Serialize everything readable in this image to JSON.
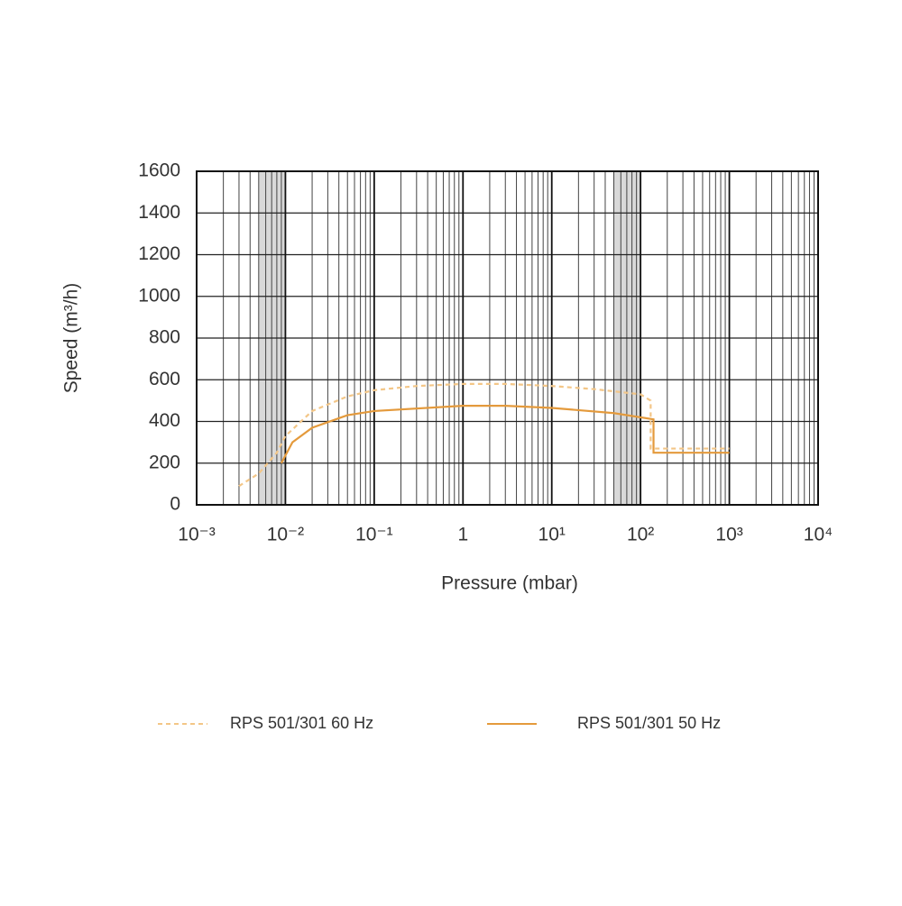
{
  "chart_data": {
    "type": "line",
    "xlabel": "Pressure (mbar)",
    "ylabel": "Speed (m³/h)",
    "xscale": "log",
    "grid": true,
    "xlim": [
      0.001,
      10000
    ],
    "xticks": [
      {
        "value": 0.001,
        "label": "10⁻³"
      },
      {
        "value": 0.01,
        "label": "10⁻²"
      },
      {
        "value": 0.1,
        "label": "10⁻¹"
      },
      1,
      {
        "value": 10,
        "label": "10¹"
      },
      {
        "value": 100,
        "label": "10²"
      },
      {
        "value": 1000,
        "label": "10³"
      },
      {
        "value": 10000,
        "label": "10⁴"
      }
    ],
    "ylim": [
      0,
      1600
    ],
    "yticks": [
      0,
      200,
      400,
      600,
      800,
      1000,
      1200,
      1400,
      1600
    ],
    "shaded_ranges": [
      [
        0.005,
        0.01
      ],
      [
        50,
        100
      ]
    ],
    "series": [
      {
        "name": "RPS 501/301 60 Hz",
        "color": "#f3c687",
        "dash": true,
        "x": [
          0.003,
          0.005,
          0.008,
          0.01,
          0.02,
          0.05,
          0.1,
          0.3,
          1,
          3,
          10,
          30,
          100,
          130,
          130,
          1000
        ],
        "values": [
          90,
          150,
          250,
          330,
          450,
          520,
          550,
          570,
          580,
          580,
          570,
          555,
          530,
          500,
          270,
          270
        ]
      },
      {
        "name": "RPS 501/301 50 Hz",
        "color": "#e49a3c",
        "dash": false,
        "x": [
          0.009,
          0.012,
          0.02,
          0.05,
          0.1,
          1,
          3,
          10,
          50,
          140,
          140,
          1000
        ],
        "values": [
          200,
          300,
          370,
          430,
          450,
          475,
          475,
          465,
          440,
          410,
          250,
          250
        ]
      }
    ]
  }
}
